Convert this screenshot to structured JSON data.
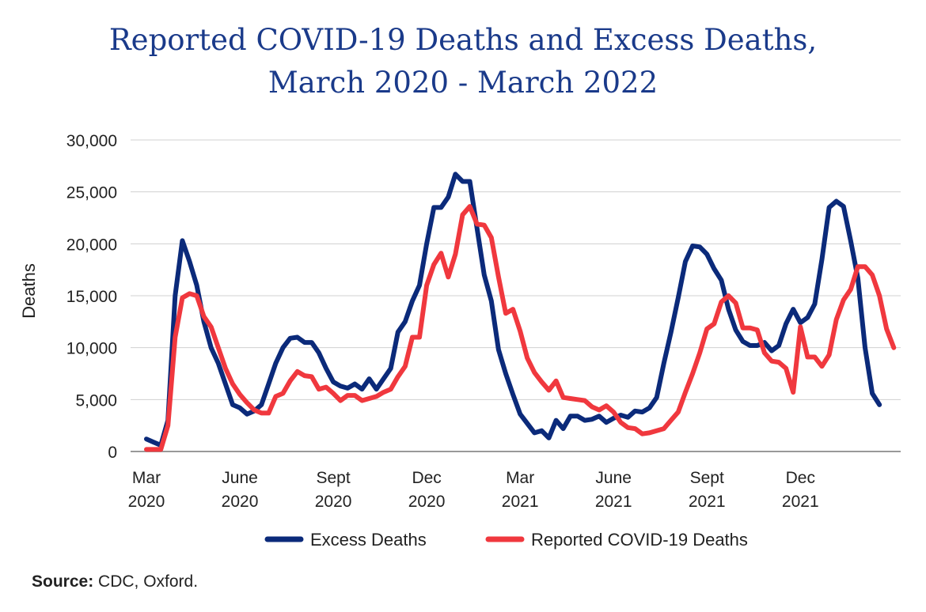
{
  "title_line1": "Reported COVID-19 Deaths and Excess Deaths,",
  "title_line2": "March 2020 - March 2022",
  "source_label": "Source:",
  "source_text": " CDC, Oxford.",
  "colors": {
    "excess": "#0b2a7a",
    "reported": "#f0383e",
    "grid": "#d0d0d0",
    "axis": "#999999"
  },
  "chart_data": {
    "type": "line",
    "title": "Reported COVID-19 Deaths and Excess Deaths, March 2020 - March 2022",
    "xlabel": "",
    "ylabel": "Deaths",
    "ylim": [
      0,
      30000
    ],
    "yticks": [
      0,
      5000,
      10000,
      15000,
      20000,
      25000,
      30000
    ],
    "ytick_labels": [
      "0",
      "5,000",
      "10,000",
      "15,000",
      "20,000",
      "25,000",
      "30,000"
    ],
    "xticks": [
      {
        "week": 0,
        "line1": "Mar",
        "line2": "2020"
      },
      {
        "week": 13,
        "line1": "June",
        "line2": "2020"
      },
      {
        "week": 26,
        "line1": "Sept",
        "line2": "2020"
      },
      {
        "week": 39,
        "line1": "Dec",
        "line2": "2020"
      },
      {
        "week": 52,
        "line1": "Mar",
        "line2": "2021"
      },
      {
        "week": 65,
        "line1": "June",
        "line2": "2021"
      },
      {
        "week": 78,
        "line1": "Sept",
        "line2": "2021"
      },
      {
        "week": 91,
        "line1": "Dec",
        "line2": "2021"
      }
    ],
    "grid": true,
    "legend_position": "bottom",
    "series": [
      {
        "name": "Excess Deaths",
        "values": [
          1200,
          900,
          600,
          3000,
          15000,
          20300,
          18300,
          16000,
          12500,
          10000,
          8500,
          6500,
          4500,
          4200,
          3600,
          3900,
          4500,
          6500,
          8500,
          10000,
          10900,
          11000,
          10500,
          10500,
          9500,
          8000,
          6700,
          6300,
          6100,
          6500,
          6000,
          7000,
          6000,
          7000,
          8000,
          11500,
          12500,
          14500,
          16000,
          20000,
          23500,
          23500,
          24500,
          26700,
          26000,
          26000,
          21500,
          17000,
          14500,
          9800,
          7500,
          5500,
          3600,
          2700,
          1800,
          2000,
          1300,
          3000,
          2200,
          3400,
          3400,
          3000,
          3100,
          3400,
          2800,
          3200,
          3500,
          3300,
          3900,
          3800,
          4200,
          5200,
          8500,
          11500,
          14800,
          18300,
          19800,
          19700,
          19000,
          17600,
          16500,
          13700,
          11700,
          10600,
          10200,
          10200,
          10500,
          9700,
          10200,
          12300,
          13700,
          12400,
          12900,
          14200,
          18500,
          23500,
          24100,
          23600,
          20300,
          16700,
          10000,
          5600,
          4500
        ]
      },
      {
        "name": "Reported COVID-19 Deaths",
        "values": [
          200,
          200,
          200,
          2500,
          11000,
          14800,
          15200,
          15000,
          13000,
          12000,
          10000,
          8000,
          6500,
          5500,
          4700,
          4000,
          3700,
          3700,
          5300,
          5600,
          6800,
          7700,
          7300,
          7200,
          6000,
          6200,
          5600,
          4900,
          5400,
          5400,
          4900,
          5100,
          5300,
          5700,
          6000,
          7200,
          8200,
          11000,
          11000,
          16000,
          18000,
          19100,
          16800,
          19000,
          22800,
          23600,
          21900,
          21800,
          20600,
          16800,
          13300,
          13700,
          11600,
          9000,
          7600,
          6700,
          5900,
          6800,
          5200,
          5100,
          5000,
          4900,
          4300,
          4000,
          4400,
          3800,
          2800,
          2300,
          2200,
          1700,
          1800,
          2000,
          2200,
          3000,
          3800,
          5700,
          7500,
          9500,
          11800,
          12300,
          14400,
          15000,
          14300,
          11900,
          11900,
          11700,
          9500,
          8700,
          8600,
          8000,
          5700,
          12000,
          9100,
          9100,
          8200,
          9300,
          12700,
          14600,
          15600,
          17800,
          17800,
          17000,
          15000,
          11800,
          10000
        ]
      }
    ]
  }
}
